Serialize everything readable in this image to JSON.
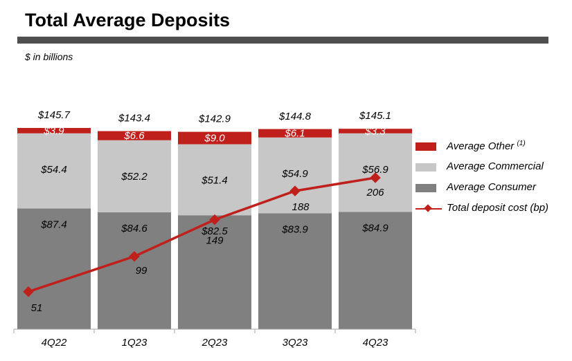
{
  "header": {
    "title": "Total Average Deposits",
    "subtitle": "$ in billions"
  },
  "colors": {
    "other": "#c0201c",
    "commercial": "#c7c7c7",
    "consumer": "#808080",
    "line": "#c0201c",
    "title_bar": "#4f4f4f",
    "axis": "#a6a6a6"
  },
  "legend": {
    "other": "Average Other",
    "other_note": "(1)",
    "commercial": "Average Commercial",
    "consumer": "Average Consumer",
    "line": "Total deposit cost (bp)"
  },
  "chart_data": {
    "type": "bar",
    "stacked": true,
    "categories": [
      "4Q22",
      "1Q23",
      "2Q23",
      "3Q23",
      "4Q23"
    ],
    "series": [
      {
        "name": "Average Consumer",
        "values": [
          87.4,
          84.6,
          82.5,
          83.9,
          84.9
        ],
        "labels": [
          "$87.4",
          "$84.6",
          "$82.5",
          "$83.9",
          "$84.9"
        ]
      },
      {
        "name": "Average Commercial",
        "values": [
          54.4,
          52.2,
          51.4,
          54.9,
          56.9
        ],
        "labels": [
          "$54.4",
          "$52.2",
          "$51.4",
          "$54.9",
          "$56.9"
        ]
      },
      {
        "name": "Average Other",
        "values": [
          3.9,
          6.6,
          9.0,
          6.1,
          3.3
        ],
        "labels": [
          "$3.9",
          "$6.6",
          "$9.0",
          "$6.1",
          "$3.3"
        ]
      }
    ],
    "totals": [
      145.7,
      143.4,
      142.9,
      144.8,
      145.1
    ],
    "total_labels": [
      "$145.7",
      "$143.4",
      "$142.9",
      "$144.8",
      "$145.1"
    ],
    "line_series": {
      "name": "Total deposit cost (bp)",
      "values": [
        51,
        99,
        149,
        188,
        206
      ],
      "labels": [
        "51",
        "99",
        "149",
        "188",
        "206"
      ]
    },
    "ylim": [
      0,
      150
    ],
    "line_ylim": [
      0,
      300
    ],
    "grid": false,
    "legend_position": "right"
  }
}
